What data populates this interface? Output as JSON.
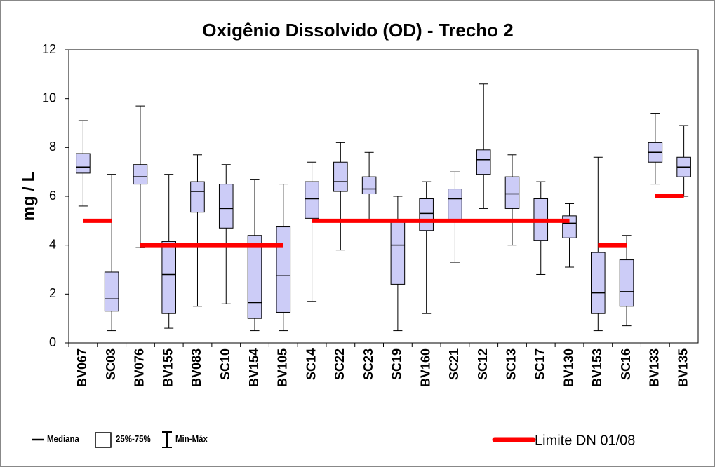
{
  "chart_data": {
    "type": "box",
    "title": "Oxigênio Dissolvido (OD) - Trecho 2",
    "y_label": "mg / L",
    "categories": [
      "BV067",
      "SC03",
      "BV076",
      "BV155",
      "BV083",
      "SC10",
      "BV154",
      "BV105",
      "SC14",
      "SC22",
      "SC23",
      "SC19",
      "BV160",
      "SC21",
      "SC12",
      "SC13",
      "SC17",
      "BV130",
      "BV153",
      "SC16",
      "BV133",
      "BV135"
    ],
    "box": {
      "color": "#ccccf7",
      "median_label": "Mediana",
      "box_label": "25%-75%",
      "whisker_label": "Min-Máx",
      "min": [
        5.6,
        0.5,
        3.9,
        0.6,
        1.5,
        1.6,
        0.5,
        0.5,
        1.7,
        3.8,
        4.95,
        0.5,
        1.2,
        3.3,
        5.5,
        4.0,
        2.8,
        3.1,
        0.5,
        0.7,
        6.5,
        6.0
      ],
      "q1": [
        6.95,
        1.3,
        6.5,
        1.2,
        5.35,
        4.7,
        1.0,
        1.25,
        5.1,
        6.2,
        6.1,
        2.4,
        4.6,
        5.0,
        6.9,
        5.5,
        4.2,
        4.3,
        1.2,
        1.5,
        7.4,
        6.8
      ],
      "median": [
        7.2,
        1.8,
        6.8,
        2.8,
        6.2,
        5.5,
        1.65,
        2.75,
        5.9,
        6.6,
        6.3,
        4.0,
        5.3,
        5.9,
        7.5,
        6.1,
        5.0,
        4.9,
        2.05,
        2.1,
        7.8,
        7.2
      ],
      "q3": [
        7.75,
        2.9,
        7.3,
        4.15,
        6.6,
        6.5,
        4.4,
        4.75,
        6.6,
        7.4,
        6.8,
        5.0,
        5.9,
        6.3,
        7.9,
        6.8,
        5.9,
        5.2,
        3.7,
        3.4,
        8.2,
        7.6
      ],
      "max": [
        9.1,
        6.9,
        9.7,
        6.9,
        7.7,
        7.3,
        6.7,
        6.5,
        7.4,
        8.2,
        7.8,
        6.0,
        6.6,
        7.0,
        10.6,
        7.7,
        6.6,
        5.7,
        7.6,
        4.4,
        9.4,
        8.9
      ]
    },
    "limit": {
      "name": "Limite DN 01/08",
      "color": "#ff0000",
      "values": [
        5,
        5,
        4,
        4,
        4,
        4,
        4,
        4,
        5,
        5,
        5,
        5,
        5,
        5,
        5,
        5,
        5,
        5,
        4,
        4,
        6,
        6
      ]
    },
    "ylim": [
      0,
      12
    ],
    "yticks": [
      0,
      2,
      4,
      6,
      8,
      10,
      12
    ]
  }
}
